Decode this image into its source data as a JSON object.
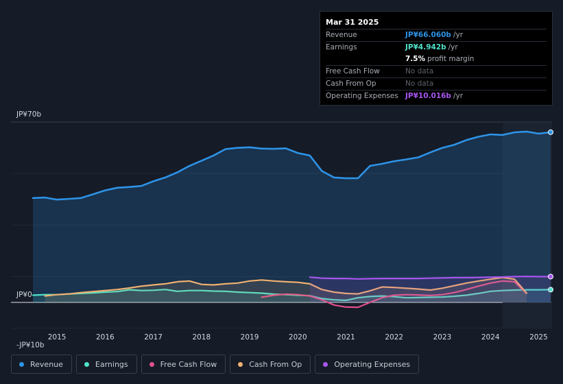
{
  "chart_data": {
    "type": "area",
    "currency": "JPY",
    "y_unit": "billions",
    "ylim": [
      -10,
      70
    ],
    "y_tick_labels": [
      {
        "value": 70,
        "label": "JP¥70b"
      },
      {
        "value": 0,
        "label": "JP¥0"
      },
      {
        "value": -10,
        "label": "-JP¥10b"
      }
    ],
    "xlim": [
      2014.2,
      2025.25
    ],
    "x_ticks": [
      2015,
      2016,
      2017,
      2018,
      2019,
      2020,
      2021,
      2022,
      2023,
      2024,
      2025
    ],
    "x_tick_labels": [
      "2015",
      "2016",
      "2017",
      "2018",
      "2019",
      "2020",
      "2021",
      "2022",
      "2023",
      "2024",
      "2025"
    ],
    "forecast_start": 2024.25,
    "series": [
      {
        "key": "revenue",
        "name": "Revenue",
        "color": "#2e93e6",
        "fill": true,
        "x": [
          2014.5,
          2014.75,
          2015.0,
          2015.25,
          2015.5,
          2015.75,
          2016.0,
          2016.25,
          2016.5,
          2016.75,
          2017.0,
          2017.25,
          2017.5,
          2017.75,
          2018.0,
          2018.25,
          2018.5,
          2018.75,
          2019.0,
          2019.25,
          2019.5,
          2019.75,
          2020.0,
          2020.25,
          2020.5,
          2020.75,
          2021.0,
          2021.25,
          2021.5,
          2021.75,
          2022.0,
          2022.25,
          2022.5,
          2022.75,
          2023.0,
          2023.25,
          2023.5,
          2023.75,
          2024.0,
          2024.25,
          2024.5,
          2024.75,
          2025.0,
          2025.25
        ],
        "values": [
          40.5,
          40.7,
          39.9,
          40.2,
          40.5,
          42.0,
          43.5,
          44.5,
          44.8,
          45.2,
          47.0,
          48.5,
          50.5,
          53.0,
          55.0,
          57.0,
          59.5,
          60.0,
          60.2,
          59.7,
          59.6,
          59.8,
          58.0,
          57.0,
          51.0,
          48.5,
          48.2,
          48.2,
          53.0,
          53.8,
          54.8,
          55.5,
          56.3,
          58.2,
          60.0,
          61.2,
          63.0,
          64.3,
          65.2,
          65.0,
          66.0,
          66.3,
          65.5,
          66.06
        ]
      },
      {
        "key": "earnings",
        "name": "Earnings",
        "color": "#4fe3c9",
        "fill": true,
        "x": [
          2014.5,
          2014.75,
          2015.0,
          2015.25,
          2015.5,
          2015.75,
          2016.0,
          2016.25,
          2016.5,
          2016.75,
          2017.0,
          2017.25,
          2017.5,
          2017.75,
          2018.0,
          2018.25,
          2018.5,
          2018.75,
          2019.0,
          2019.25,
          2019.5,
          2019.75,
          2020.0,
          2020.25,
          2020.5,
          2020.75,
          2021.0,
          2021.25,
          2021.5,
          2021.75,
          2022.0,
          2022.25,
          2022.5,
          2022.75,
          2023.0,
          2023.25,
          2023.5,
          2023.75,
          2024.0,
          2024.25,
          2024.5,
          2024.75,
          2025.0,
          2025.25
        ],
        "values": [
          2.8,
          3.0,
          3.0,
          3.3,
          3.5,
          3.7,
          4.0,
          4.2,
          4.9,
          4.6,
          4.7,
          5.0,
          4.3,
          4.6,
          4.6,
          4.4,
          4.3,
          4.0,
          3.8,
          3.6,
          3.2,
          3.0,
          2.8,
          2.6,
          1.5,
          1.0,
          0.8,
          1.8,
          2.3,
          2.5,
          2.2,
          1.8,
          1.9,
          2.0,
          2.1,
          2.4,
          2.8,
          3.5,
          4.3,
          4.6,
          4.8,
          4.9,
          4.9,
          4.942
        ]
      },
      {
        "key": "fcf",
        "name": "Free Cash Flow",
        "color": "#e0508a",
        "fill": false,
        "x": [
          2019.25,
          2019.5,
          2019.75,
          2020.0,
          2020.25,
          2020.5,
          2020.75,
          2021.0,
          2021.25,
          2021.5,
          2021.75,
          2022.0,
          2022.25,
          2022.5,
          2022.75,
          2023.0,
          2023.25,
          2023.5,
          2023.75,
          2024.0,
          2024.25,
          2024.5,
          2024.75
        ],
        "values": [
          2.0,
          2.8,
          3.2,
          3.0,
          2.5,
          1.0,
          -1.0,
          -1.8,
          -1.9,
          0.0,
          1.8,
          2.8,
          3.0,
          2.9,
          2.7,
          3.0,
          3.8,
          5.0,
          6.3,
          7.5,
          8.3,
          8.0,
          3.5
        ]
      },
      {
        "key": "cfo",
        "name": "Cash From Op",
        "color": "#f0b070",
        "fill": true,
        "x": [
          2014.75,
          2015.0,
          2015.25,
          2015.5,
          2015.75,
          2016.0,
          2016.25,
          2016.5,
          2016.75,
          2017.0,
          2017.25,
          2017.5,
          2017.75,
          2018.0,
          2018.25,
          2018.5,
          2018.75,
          2019.0,
          2019.25,
          2019.5,
          2019.75,
          2020.0,
          2020.25,
          2020.5,
          2020.75,
          2021.0,
          2021.25,
          2021.5,
          2021.75,
          2022.0,
          2022.25,
          2022.5,
          2022.75,
          2023.0,
          2023.25,
          2023.5,
          2023.75,
          2024.0,
          2024.25,
          2024.5,
          2024.75
        ],
        "values": [
          2.5,
          3.0,
          3.3,
          3.8,
          4.2,
          4.6,
          5.0,
          5.6,
          6.3,
          6.8,
          7.2,
          8.0,
          8.3,
          7.0,
          6.8,
          7.2,
          7.5,
          8.3,
          8.7,
          8.3,
          8.0,
          7.8,
          7.2,
          5.0,
          4.0,
          3.5,
          3.3,
          4.5,
          6.0,
          5.8,
          5.5,
          5.2,
          4.8,
          5.5,
          6.5,
          7.5,
          8.3,
          9.0,
          9.7,
          9.0,
          3.6
        ]
      },
      {
        "key": "opex",
        "name": "Operating Expenses",
        "color": "#a856f0",
        "fill": true,
        "x": [
          2020.25,
          2020.5,
          2020.75,
          2021.0,
          2021.25,
          2021.5,
          2021.75,
          2022.0,
          2022.25,
          2022.5,
          2022.75,
          2023.0,
          2023.25,
          2023.5,
          2023.75,
          2024.0,
          2024.25,
          2024.5,
          2024.75,
          2025.0,
          2025.25
        ],
        "values": [
          9.8,
          9.4,
          9.3,
          9.3,
          9.1,
          9.2,
          9.3,
          9.3,
          9.3,
          9.3,
          9.4,
          9.5,
          9.6,
          9.6,
          9.7,
          9.8,
          9.9,
          10.0,
          10.1,
          10.0,
          10.016
        ]
      }
    ]
  },
  "tooltip": {
    "date": "Mar 31 2025",
    "rows": [
      {
        "label": "Revenue",
        "value": "JP¥66.060b",
        "unit": "/yr",
        "color": "#2e93e6"
      },
      {
        "label": "Earnings",
        "value": "JP¥4.942b",
        "unit": "/yr",
        "color": "#4fe3c9"
      },
      {
        "label": "",
        "value": "7.5%",
        "unit": "profit margin",
        "color": "#ffffff"
      },
      {
        "label": "Free Cash Flow",
        "value": "No data",
        "unit": "",
        "color": ""
      },
      {
        "label": "Cash From Op",
        "value": "No data",
        "unit": "",
        "color": ""
      },
      {
        "label": "Operating Expenses",
        "value": "JP¥10.016b",
        "unit": "/yr",
        "color": "#a856f0"
      }
    ]
  },
  "legend": [
    {
      "key": "revenue",
      "label": "Revenue",
      "color": "#2e93e6"
    },
    {
      "key": "earnings",
      "label": "Earnings",
      "color": "#4fe3c9"
    },
    {
      "key": "fcf",
      "label": "Free Cash Flow",
      "color": "#e0508a"
    },
    {
      "key": "cfo",
      "label": "Cash From Op",
      "color": "#f0b070"
    },
    {
      "key": "opex",
      "label": "Operating Expenses",
      "color": "#a856f0"
    }
  ]
}
